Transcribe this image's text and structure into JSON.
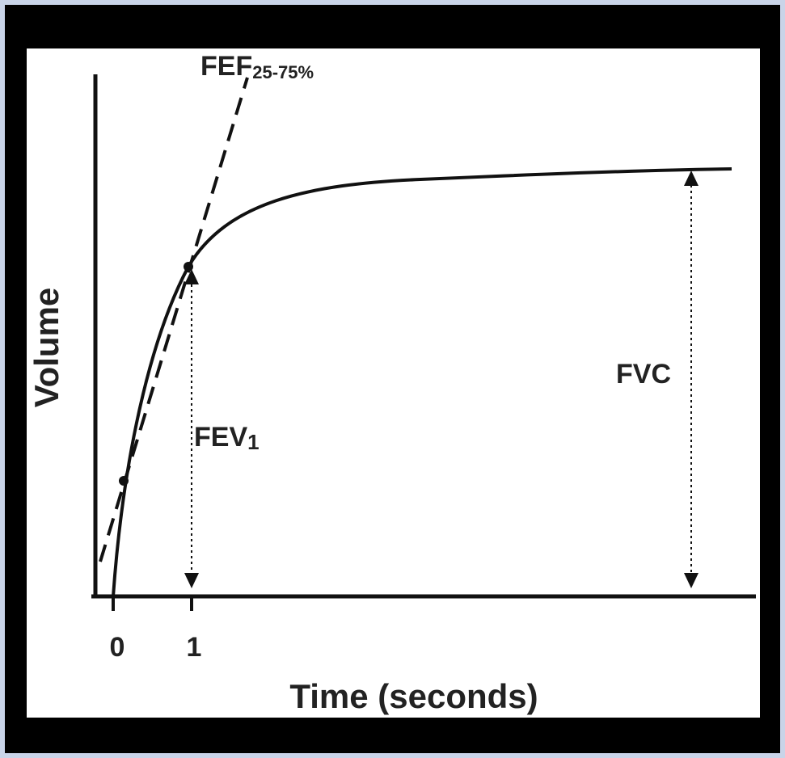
{
  "diagram": {
    "y_axis_label": "Volume",
    "x_axis_label": "Time (seconds)",
    "x_tick_labels": [
      "0",
      "1"
    ],
    "fef": {
      "main": "FEF",
      "sub": "25-75%"
    },
    "fev": {
      "main": "FEV",
      "sub": "1"
    },
    "fvc": "FVC"
  }
}
